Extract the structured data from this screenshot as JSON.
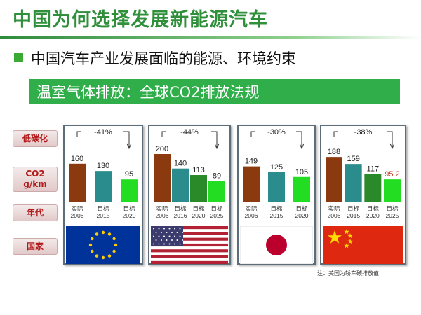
{
  "title": "中国为何选择发展新能源汽车",
  "subtitle": "中国汽车产业发展面临的能源、环境约束",
  "banner": "温室气体排放：全球CO2排放法规",
  "row_labels": {
    "low_carbon": "低碳化",
    "co2": "CO2 g/km",
    "year": "年代",
    "country": "国家"
  },
  "footnote": "注：美国为轿车碳排放值",
  "colors": {
    "actual": "#8b3a10",
    "target_2015": "#2a8c8c",
    "target_2020": "#2a8a2a",
    "target_2025": "#22dd22",
    "text_red": "#c23b22"
  },
  "chart_data": [
    {
      "type": "bar",
      "country": "EU",
      "flag": "eu-flag",
      "reduction": "-41%",
      "categories": [
        "实际 2006",
        "目标 2015",
        "目标 2020"
      ],
      "category_lines": [
        [
          "实际",
          "2006"
        ],
        [
          "目标",
          "2015"
        ],
        [
          "目标",
          "2020"
        ]
      ],
      "values": [
        160,
        130,
        95
      ],
      "value_labels": [
        "160",
        "130",
        "95"
      ],
      "bar_colors": [
        "#8b3a10",
        "#2a8c8c",
        "#22dd22"
      ]
    },
    {
      "type": "bar",
      "country": "USA",
      "flag": "us-flag",
      "reduction": "-44%",
      "categories": [
        "实际 2006",
        "目标 2016",
        "目标 2020",
        "目标 2025"
      ],
      "category_lines": [
        [
          "实际",
          "2006"
        ],
        [
          "目标",
          "2016"
        ],
        [
          "目标",
          "2020"
        ],
        [
          "目标",
          "2025"
        ]
      ],
      "values": [
        200,
        140,
        113,
        89
      ],
      "value_labels": [
        "200",
        "140",
        "113",
        "89"
      ],
      "bar_colors": [
        "#8b3a10",
        "#2a8c8c",
        "#2a8a2a",
        "#22dd22"
      ]
    },
    {
      "type": "bar",
      "country": "Japan",
      "flag": "japan-flag",
      "reduction": "-30%",
      "categories": [
        "实际 2006",
        "目标 2015",
        "目标 2020"
      ],
      "category_lines": [
        [
          "实际",
          "2006"
        ],
        [
          "目标",
          "2015"
        ],
        [
          "目标",
          "2020"
        ]
      ],
      "values": [
        149,
        125,
        105
      ],
      "value_labels": [
        "149",
        "125",
        "105"
      ],
      "bar_colors": [
        "#8b3a10",
        "#2a8c8c",
        "#22dd22"
      ]
    },
    {
      "type": "bar",
      "country": "China",
      "flag": "china-flag",
      "reduction": "-38%",
      "categories": [
        "实际 2006",
        "目标 2015",
        "目标 2020",
        "目标 2025"
      ],
      "category_lines": [
        [
          "实际",
          "2006"
        ],
        [
          "目标",
          "2015"
        ],
        [
          "目标",
          "2020"
        ],
        [
          "目标",
          "2025"
        ]
      ],
      "values": [
        188,
        159,
        117,
        95.2
      ],
      "value_labels": [
        "188",
        "159",
        "117",
        "95.2"
      ],
      "value_label_colors": [
        "#222222",
        "#222222",
        "#222222",
        "#c23b22"
      ],
      "bar_colors": [
        "#8b3a10",
        "#2a8c8c",
        "#2a8a2a",
        "#22dd22"
      ]
    }
  ]
}
